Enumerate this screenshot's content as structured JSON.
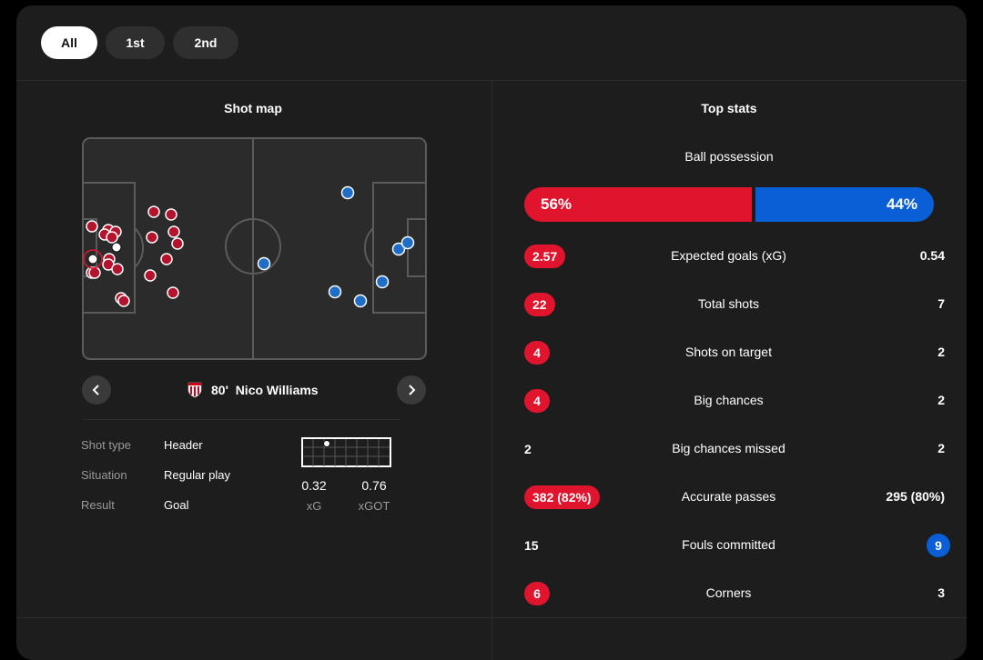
{
  "tabs": [
    "All",
    "1st",
    "2nd"
  ],
  "shot_map": {
    "title": "Shot map",
    "selected_shot": {
      "minute": "80'",
      "player": "Nico Williams"
    },
    "details": [
      {
        "label": "Shot type",
        "value": "Header"
      },
      {
        "label": "Situation",
        "value": "Regular play"
      },
      {
        "label": "Result",
        "value": "Goal"
      }
    ],
    "xg": {
      "value": "0.32",
      "label": "xG"
    },
    "xgot": {
      "value": "0.76",
      "label": "xGOT"
    }
  },
  "top_stats": {
    "title": "Top stats",
    "possession": {
      "label": "Ball possession",
      "home": "56%",
      "away": "44%",
      "home_fraction": 0.56
    },
    "rows": [
      {
        "name": "Expected goals (xG)",
        "home": "2.57",
        "away": "0.54",
        "highlight": "home"
      },
      {
        "name": "Total shots",
        "home": "22",
        "away": "7",
        "highlight": "home"
      },
      {
        "name": "Shots on target",
        "home": "4",
        "away": "2",
        "highlight": "home"
      },
      {
        "name": "Big chances",
        "home": "4",
        "away": "2",
        "highlight": "home"
      },
      {
        "name": "Big chances missed",
        "home": "2",
        "away": "2",
        "highlight": "none"
      },
      {
        "name": "Accurate passes",
        "home": "382 (82%)",
        "away": "295 (80%)",
        "highlight": "home"
      },
      {
        "name": "Fouls committed",
        "home": "15",
        "away": "9",
        "highlight": "away"
      },
      {
        "name": "Corners",
        "home": "6",
        "away": "3",
        "highlight": "home"
      }
    ]
  },
  "colors": {
    "home": "#e0142c",
    "away": "#0a5fd6",
    "home_marker": "#b5122e",
    "away_marker": "#1e6ec8"
  }
}
